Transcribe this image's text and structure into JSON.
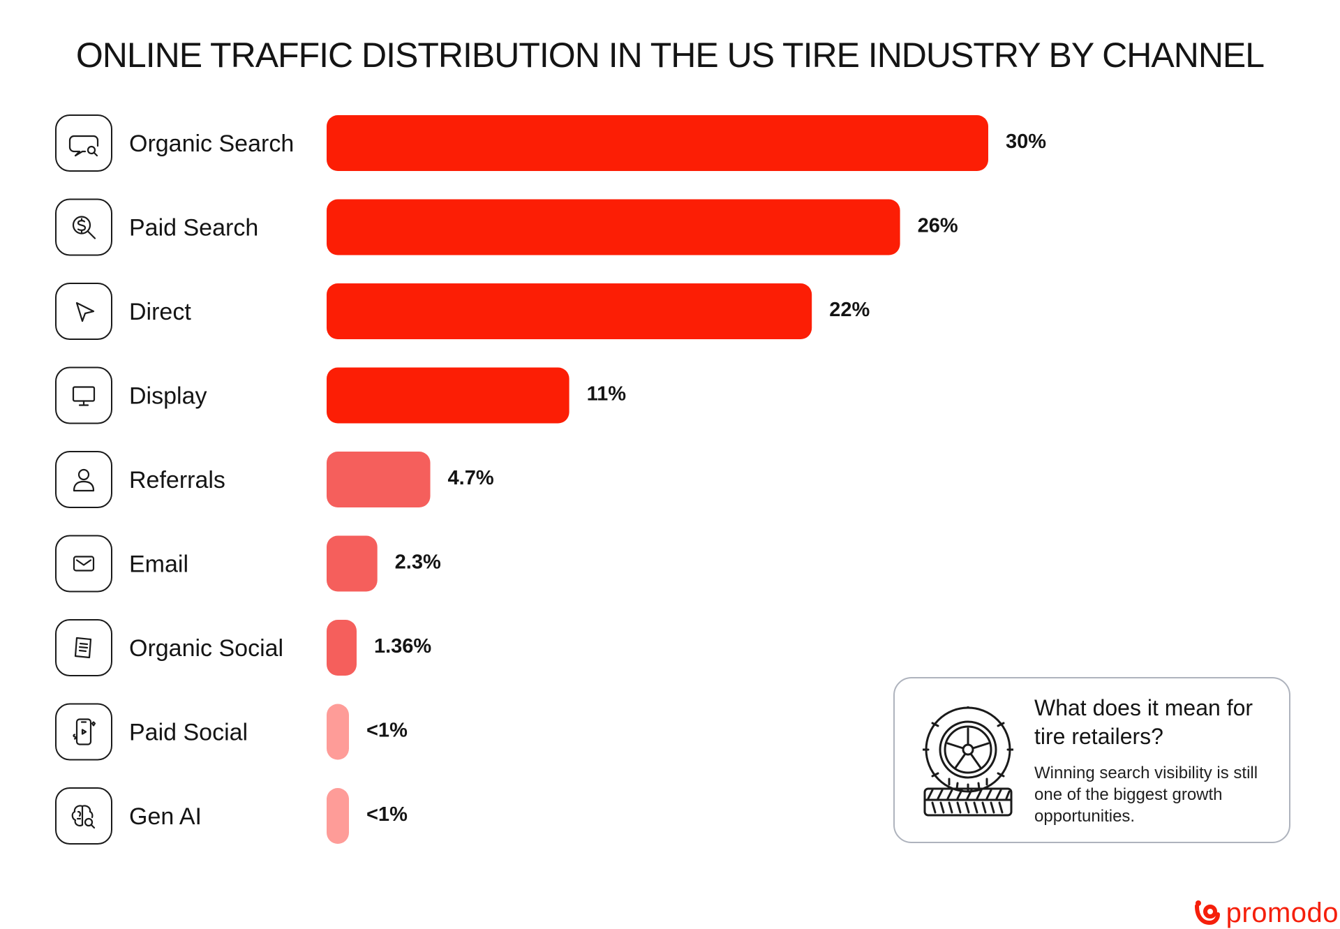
{
  "title": "ONLINE TRAFFIC DISTRIBUTION IN THE US TIRE INDUSTRY BY CHANNEL",
  "chart_data": {
    "type": "bar",
    "orientation": "horizontal",
    "title": "ONLINE TRAFFIC DISTRIBUTION IN THE US TIRE INDUSTRY BY CHANNEL",
    "xlabel": "",
    "ylabel": "",
    "unit": "%",
    "grid": false,
    "legend": "none",
    "categories": [
      "Organic Search",
      "Paid Search",
      "Direct",
      "Display",
      "Referrals",
      "Email",
      "Organic Social",
      "Paid Social",
      "Gen AI"
    ],
    "values": [
      30,
      26,
      22,
      11,
      4.7,
      2.3,
      1.36,
      0.8,
      0.8
    ],
    "value_labels": [
      "30%",
      "26%",
      "22%",
      "11%",
      "4.7%",
      "2.3%",
      "1.36%",
      "<1%",
      "<1%"
    ],
    "icons": [
      "chat-search-icon",
      "dollar-search-icon",
      "cursor-arrow-icon",
      "monitor-icon",
      "user-icon",
      "envelope-icon",
      "document-icon",
      "phone-social-icon",
      "brain-search-icon"
    ],
    "bar_colors": [
      "#fc1e05",
      "#fc1e05",
      "#fc1e05",
      "#fc1e05",
      "#f55f5c",
      "#f55f5c",
      "#f55f5c",
      "#fe9c98",
      "#fe9c98"
    ]
  },
  "callout": {
    "title": "What does it mean for tire retailers?",
    "body": "Winning search visibility is still one of the biggest growth opportunities.",
    "icon": "tire-icon"
  },
  "brand": {
    "name": "promodo",
    "color": "#f51f0b",
    "icon": "promodo-logo-icon"
  }
}
